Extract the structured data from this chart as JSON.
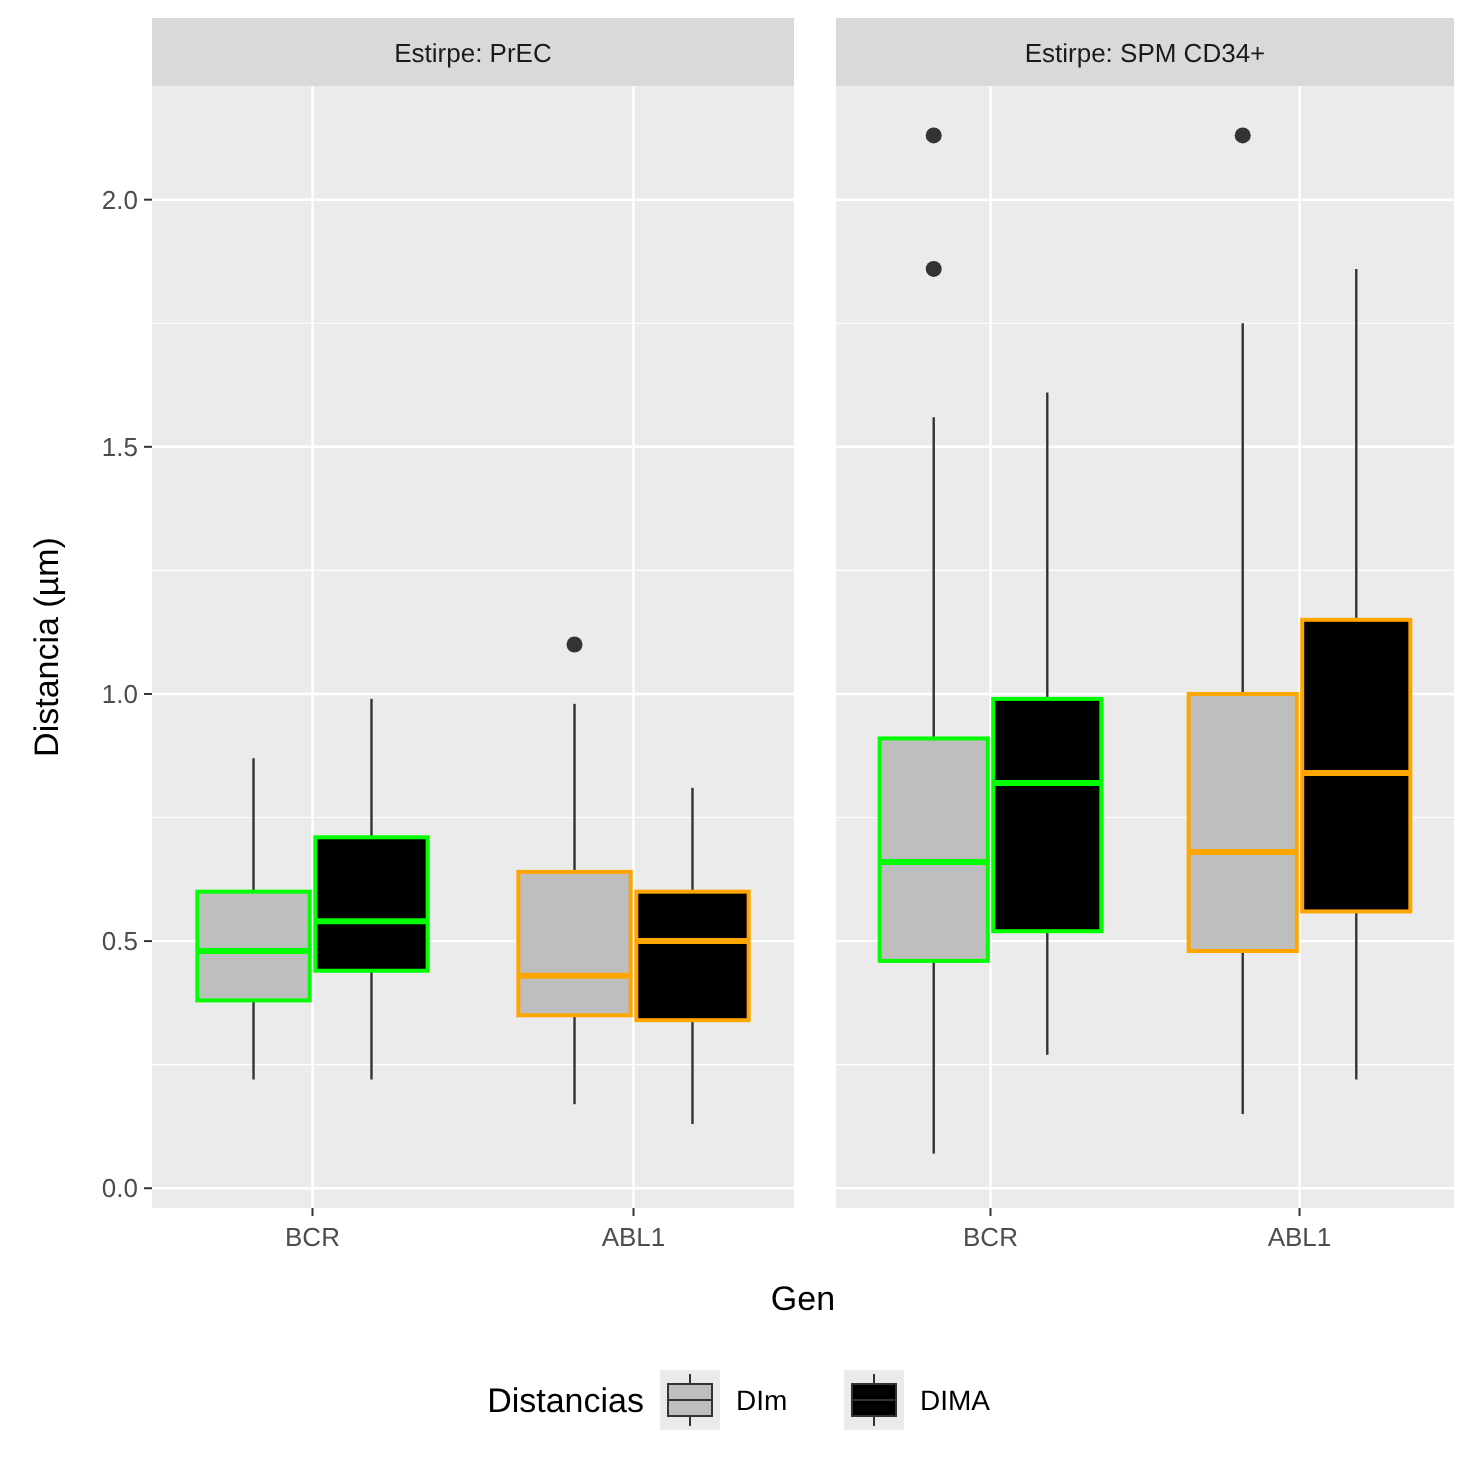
{
  "chart_data": [
    {
      "type": "box",
      "title": "Estirpe: PrEC",
      "xlabel": "Gen",
      "ylabel": "Distancia (µm)",
      "legend_title": "Distancias",
      "legend": "bottom",
      "grid": true,
      "categories": [
        "BCR",
        "ABL1"
      ],
      "colors": [
        "#00ff00",
        "#ffa500"
      ],
      "ylim": [
        -0.04,
        2.23
      ],
      "yticks": [
        {
          "value": 0,
          "label": "0.0"
        },
        0.5,
        {
          "value": 1,
          "label": "1.0"
        },
        1.5,
        {
          "value": 2,
          "label": "2.0"
        }
      ],
      "series": [
        {
          "name": "DIm",
          "color": "#bebebe",
          "boxes": [
            {
              "low": 0.22,
              "q1": 0.38,
              "median": 0.48,
              "q3": 0.6,
              "high": 0.87
            },
            {
              "low": 0.17,
              "q1": 0.35,
              "median": 0.43,
              "q3": 0.64,
              "high": 0.98,
              "outliers": [
                1.1
              ]
            }
          ]
        },
        {
          "name": "DIMA",
          "color": "#000000",
          "boxes": [
            {
              "low": 0.22,
              "q1": 0.44,
              "median": 0.54,
              "q3": 0.71,
              "high": 0.99
            },
            {
              "low": 0.13,
              "q1": 0.34,
              "median": 0.5,
              "q3": 0.6,
              "high": 0.81
            }
          ]
        }
      ]
    },
    {
      "type": "box",
      "title": "Estirpe: SPM CD34+",
      "grid": true,
      "tick_labels": "x",
      "categories": [
        "BCR",
        "ABL1"
      ],
      "colors": [
        "#00ff00",
        "#ffa500"
      ],
      "ylim": [
        -0.04,
        2.23
      ],
      "yticks": [
        0,
        0.5,
        1,
        1.5,
        2
      ],
      "series": [
        {
          "color": "#bebebe",
          "boxes": [
            {
              "low": 0.07,
              "q1": 0.46,
              "median": 0.66,
              "q3": 0.91,
              "high": 1.56,
              "outliers": [
                1.86,
                2.13
              ]
            },
            {
              "low": 0.15,
              "q1": 0.48,
              "median": 0.68,
              "q3": 1.0,
              "high": 1.75,
              "outliers": [
                2.13
              ]
            }
          ]
        },
        {
          "color": "#000000",
          "boxes": [
            {
              "low": 0.27,
              "q1": 0.52,
              "median": 0.82,
              "q3": 0.99,
              "high": 1.61
            },
            {
              "low": 0.22,
              "q1": 0.56,
              "median": 0.84,
              "q3": 1.15,
              "high": 1.86
            }
          ]
        }
      ]
    }
  ]
}
